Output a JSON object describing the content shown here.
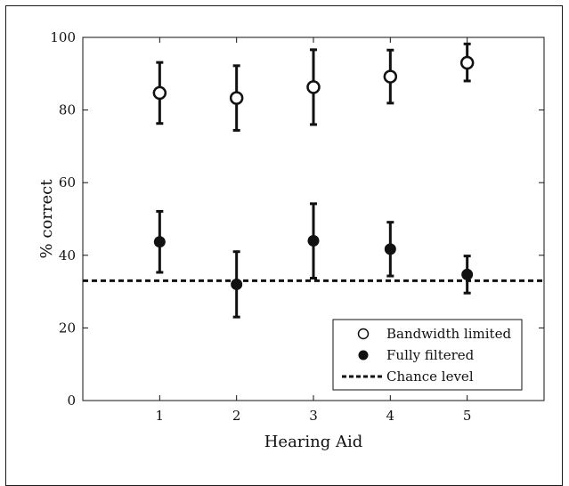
{
  "chart_data": {
    "type": "scatter",
    "xlabel": "Hearing Aid",
    "ylabel": "% correct",
    "xlim": [
      0,
      6
    ],
    "ylim": [
      0,
      100
    ],
    "x_ticks": [
      1,
      2,
      3,
      4,
      5
    ],
    "y_ticks": [
      0,
      20,
      40,
      60,
      80,
      100
    ],
    "grid": false,
    "legend_position": "bottom-right",
    "x": [
      1,
      2,
      3,
      4,
      5
    ],
    "series": [
      {
        "name": "Bandwidth limited",
        "marker": "open-circle",
        "values": [
          84.7,
          83.3,
          86.3,
          89.2,
          93.0
        ],
        "error_low": [
          76.3,
          74.4,
          76.0,
          81.9,
          88.0
        ],
        "error_high": [
          93.1,
          92.2,
          96.6,
          96.5,
          98.2
        ]
      },
      {
        "name": "Fully filtered",
        "marker": "filled-circle",
        "values": [
          43.7,
          32.0,
          44.0,
          41.7,
          34.7
        ],
        "error_low": [
          35.3,
          23.0,
          33.7,
          34.3,
          29.6
        ],
        "error_high": [
          52.1,
          41.0,
          54.2,
          49.1,
          39.8
        ]
      }
    ],
    "reference_line": {
      "name": "Chance level",
      "y": 33.0,
      "style": "dashed"
    }
  },
  "colors": {
    "ink": "#111111",
    "background": "#ffffff"
  }
}
